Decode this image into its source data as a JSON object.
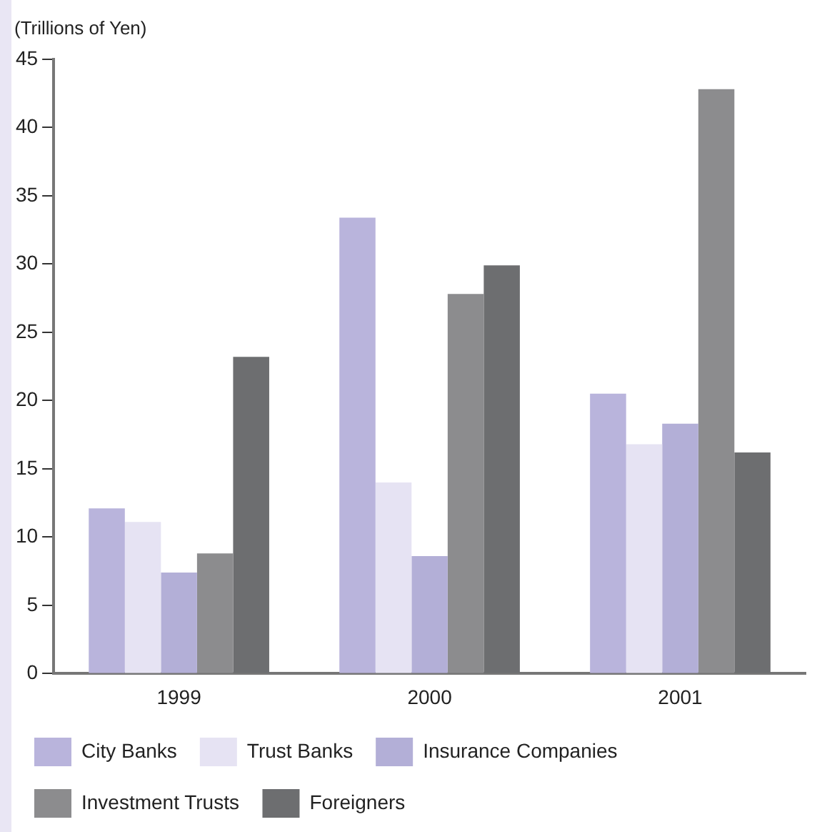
{
  "chart_data": {
    "type": "bar",
    "ylabel": "(Trillions of Yen)",
    "categories": [
      "1999",
      "2000",
      "2001"
    ],
    "series": [
      {
        "name": "City Banks",
        "color": "#b9b4dc",
        "values": [
          12.1,
          33.4,
          20.5
        ]
      },
      {
        "name": "Trust Banks",
        "color": "#e6e3f3",
        "values": [
          11.1,
          14.0,
          16.8
        ]
      },
      {
        "name": "Insurance Companies",
        "color": "#b3afd7",
        "values": [
          7.4,
          8.6,
          18.3
        ]
      },
      {
        "name": "Investment Trusts",
        "color": "#8c8c8e",
        "values": [
          8.8,
          27.8,
          42.8
        ]
      },
      {
        "name": "Foreigners",
        "color": "#6d6e70",
        "values": [
          23.2,
          29.9,
          16.2
        ]
      }
    ],
    "ylim": [
      0,
      45
    ],
    "yticks": [
      0,
      5,
      10,
      15,
      20,
      25,
      30,
      35,
      40,
      45
    ],
    "grid": false,
    "legend": "bottom"
  }
}
